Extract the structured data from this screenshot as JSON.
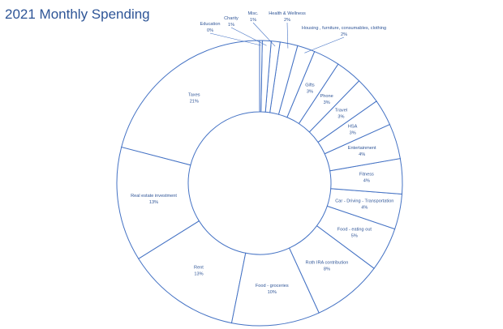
{
  "chart_data": {
    "type": "pie",
    "title": "2021 Monthly Spending",
    "donut": true,
    "series": [
      {
        "name": "Taxes",
        "pct_label": "21%",
        "value": 21
      },
      {
        "name": "Real estate investment",
        "pct_label": "13%",
        "value": 13
      },
      {
        "name": "Rent",
        "pct_label": "13%",
        "value": 13
      },
      {
        "name": "Food - groceries",
        "pct_label": "10%",
        "value": 10
      },
      {
        "name": "Roth IRA contribution",
        "pct_label": "8%",
        "value": 8
      },
      {
        "name": "Food - eating out",
        "pct_label": "5%",
        "value": 5
      },
      {
        "name": "Car - Driving - Transportation",
        "pct_label": "4%",
        "value": 4
      },
      {
        "name": "Fitness",
        "pct_label": "4%",
        "value": 4
      },
      {
        "name": "Entertainment",
        "pct_label": "4%",
        "value": 4
      },
      {
        "name": "HSA",
        "pct_label": "3%",
        "value": 3
      },
      {
        "name": "Travel",
        "pct_label": "3%",
        "value": 3
      },
      {
        "name": "Phone",
        "pct_label": "3%",
        "value": 3
      },
      {
        "name": "Gifts",
        "pct_label": "3%",
        "value": 3
      },
      {
        "name": "Housing , furniture, consumables, clothing",
        "pct_label": "2%",
        "value": 2
      },
      {
        "name": "Health & Wellness",
        "pct_label": "2%",
        "value": 2
      },
      {
        "name": "Misc.",
        "pct_label": "1%",
        "value": 1
      },
      {
        "name": "Charity",
        "pct_label": "1%",
        "value": 1
      },
      {
        "name": "Education",
        "pct_label": "0%",
        "value": 0.3
      }
    ],
    "colors": {
      "outline": "#4472c4",
      "label": "#2f5597",
      "title": "#2e5597"
    }
  }
}
